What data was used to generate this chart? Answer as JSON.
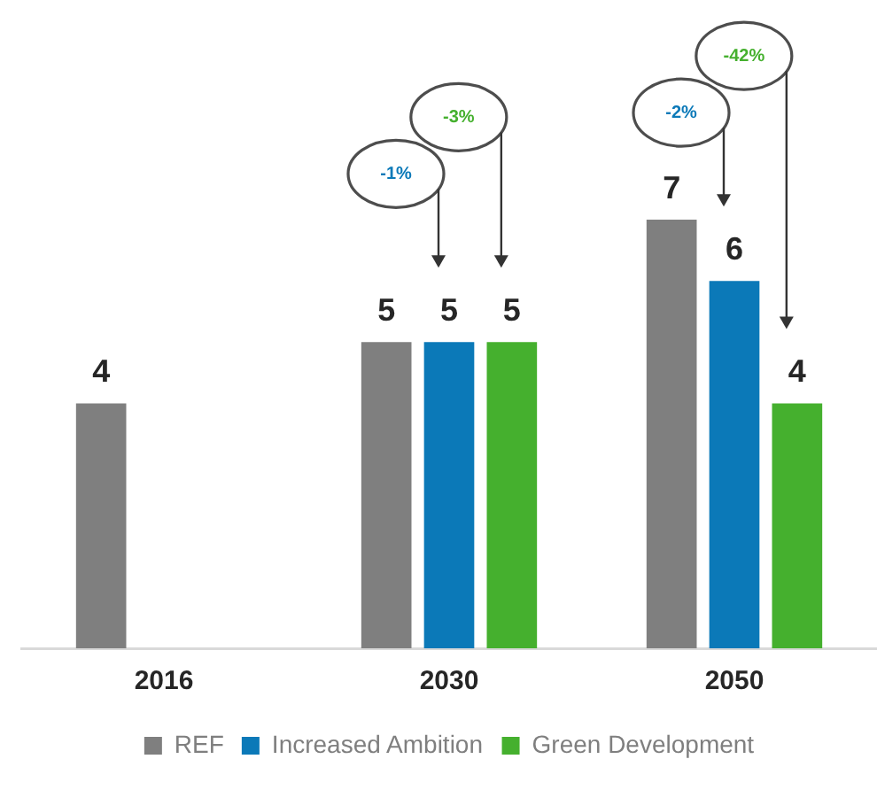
{
  "chart_data": {
    "type": "bar",
    "categories": [
      "2016",
      "2030",
      "2050"
    ],
    "series": [
      {
        "name": "REF",
        "color": "#7f7f7f",
        "values": [
          4,
          5,
          7
        ]
      },
      {
        "name": "Increased Ambition",
        "color": "#0b79b8",
        "values": [
          null,
          5,
          6
        ]
      },
      {
        "name": "Green Development",
        "color": "#45b02e",
        "values": [
          null,
          5,
          4
        ]
      }
    ],
    "tick_labels": "x",
    "data_labels": true,
    "grid": false,
    "legend": "bottom",
    "annotations": [
      "-1%",
      "-3%",
      "-2%",
      "-42%"
    ]
  }
}
